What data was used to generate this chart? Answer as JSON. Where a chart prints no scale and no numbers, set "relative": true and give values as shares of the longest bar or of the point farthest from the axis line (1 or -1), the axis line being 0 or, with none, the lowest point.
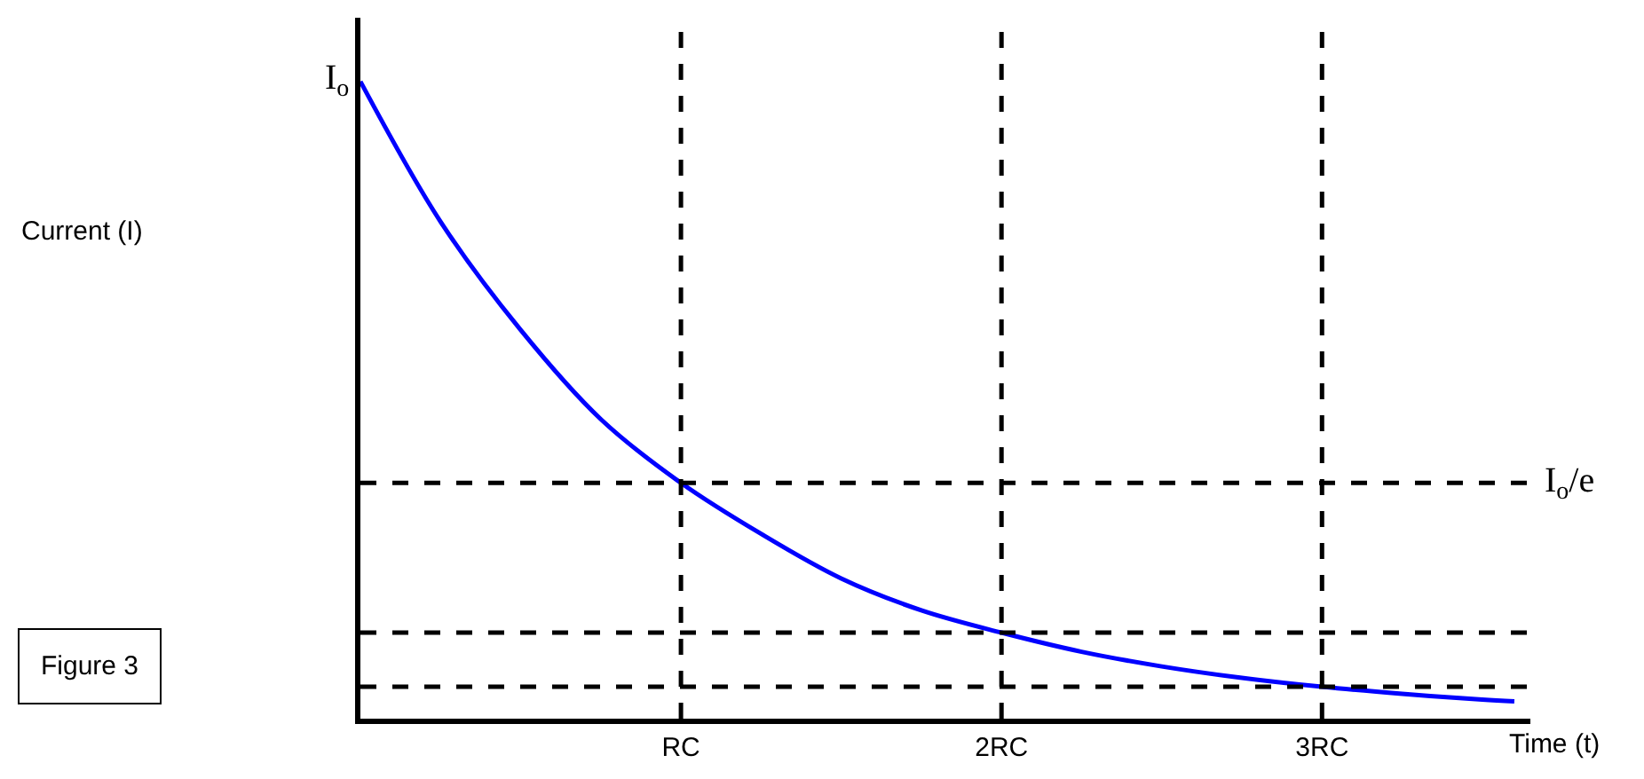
{
  "chart_data": {
    "type": "line",
    "relative": true,
    "xlabel": "Time (t)",
    "x": [
      0,
      0.25,
      0.5,
      0.75,
      1,
      1.25,
      1.5,
      1.75,
      2,
      2.25,
      2.5,
      2.75,
      3,
      3.25,
      3.5,
      3.6
    ],
    "series": [
      {
        "color": "#0000ff",
        "values": [
          1,
          0.78,
          0.61,
          0.47,
          0.37,
          0.29,
          0.22,
          0.17,
          0.135,
          0.105,
          0.082,
          0.064,
          0.05,
          0.039,
          0.03,
          0.027
        ]
      }
    ],
    "xlim": [
      0,
      3.65
    ],
    "xticks": [
      {
        "value": 1,
        "label": "RC"
      },
      {
        "value": 2,
        "label": "2RC"
      },
      {
        "value": 3,
        "label": "3RC"
      }
    ],
    "ref_lines": [
      {
        "axis": "x",
        "value": 1,
        "label": null,
        "line_style": "dashed"
      },
      {
        "axis": "x",
        "value": 2,
        "label": null,
        "line_style": "dashed"
      },
      {
        "axis": "x",
        "value": 3,
        "label": null,
        "line_style": "dashed"
      },
      {
        "axis": "y",
        "value": 0.37,
        "label": "I$_{o}$/e",
        "line_style": "dashed"
      },
      {
        "axis": "y",
        "value": 0.135,
        "label": null,
        "line_style": "dashed"
      },
      {
        "axis": "y",
        "value": 0.05,
        "label": null,
        "line_style": "dashed"
      }
    ],
    "annotations": [
      {
        "text": "I$_{o}$",
        "x": 0,
        "y": 1
      },
      "Current (I)",
      "Figure 3"
    ],
    "grid": false,
    "marker": "none",
    "line_style": "solid"
  }
}
